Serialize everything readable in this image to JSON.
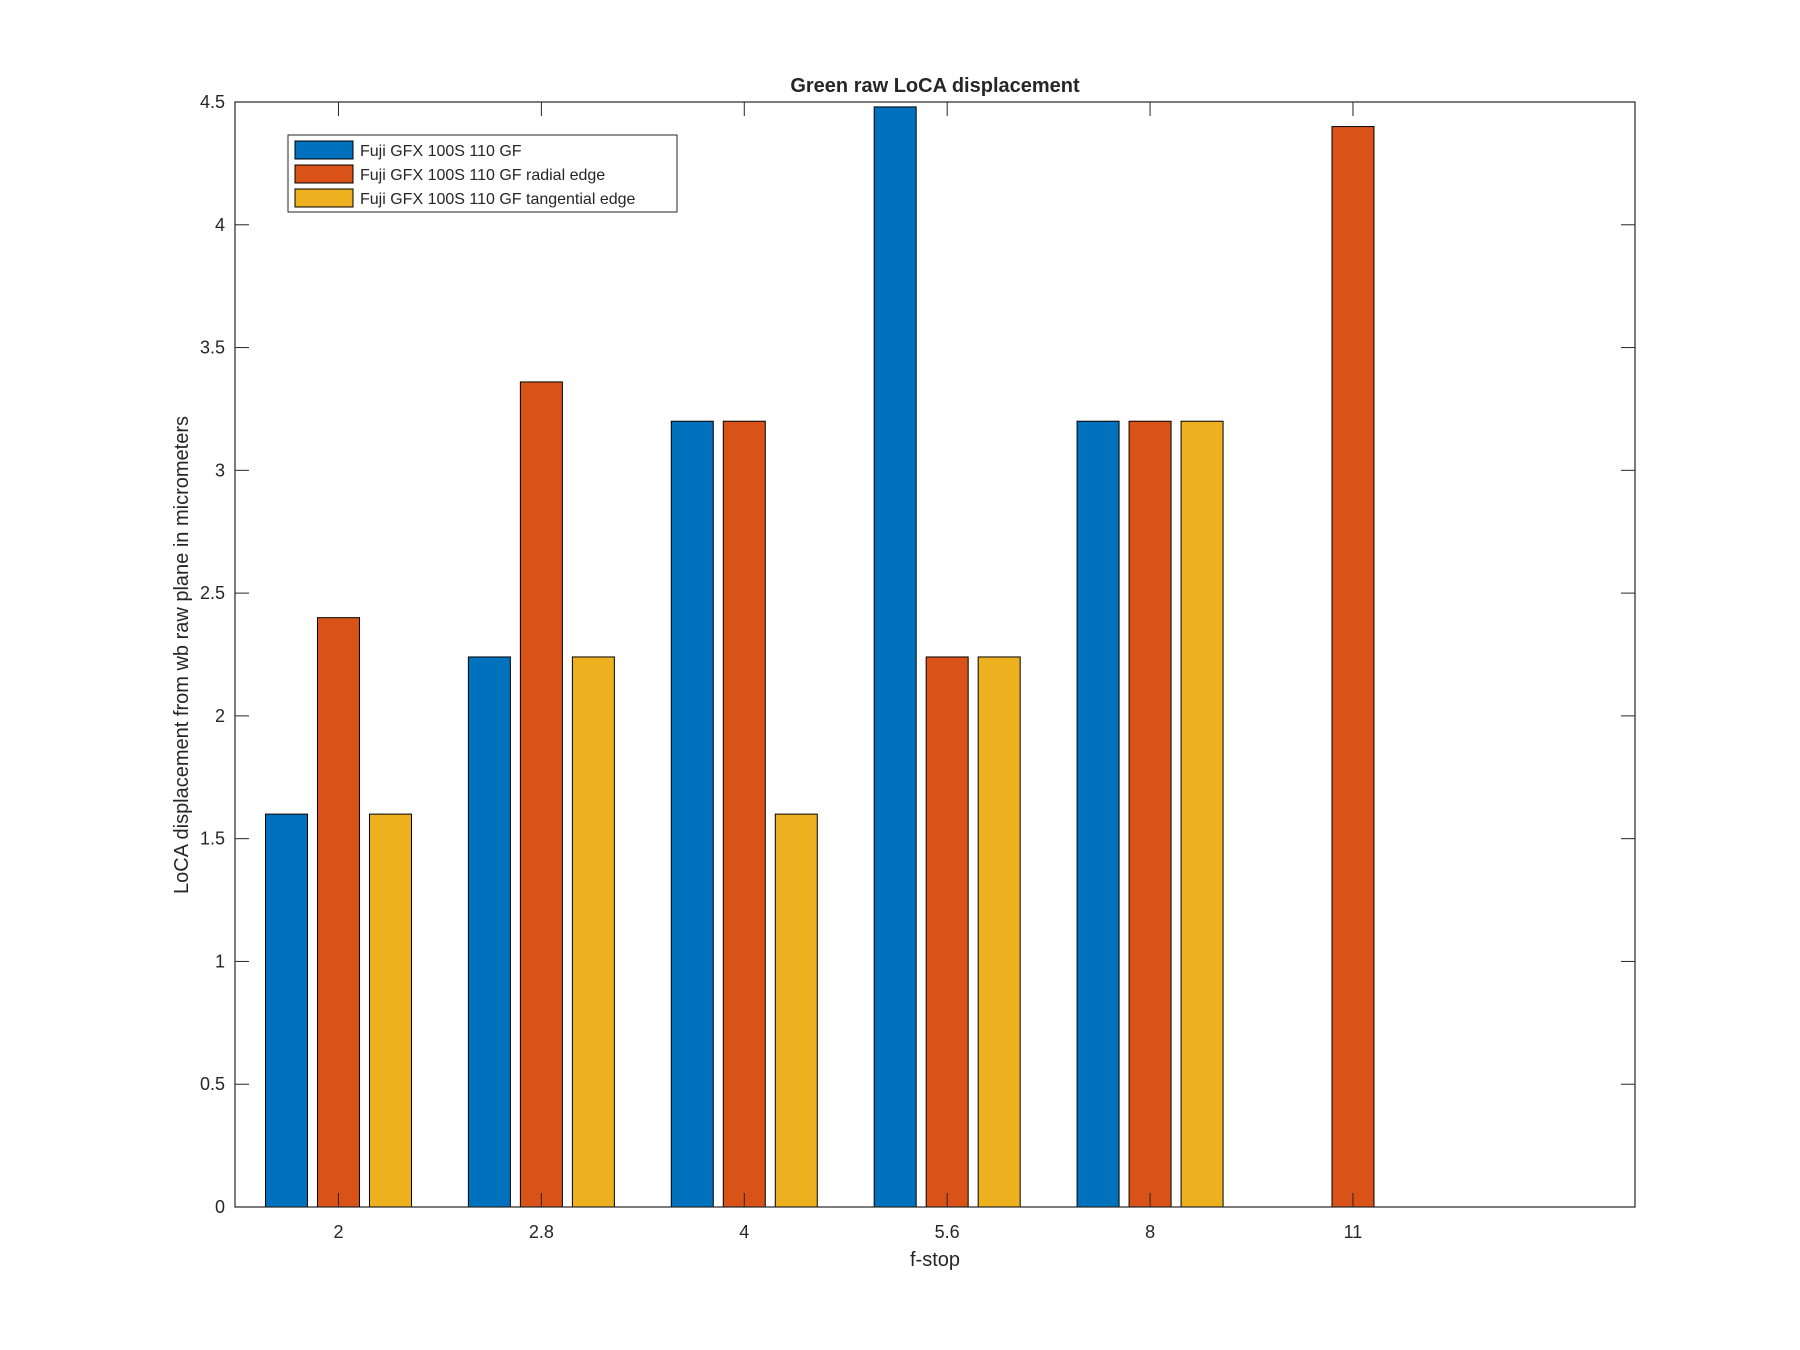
{
  "chart_data": {
    "type": "bar",
    "title": "Green raw  LoCA displacement",
    "xlabel": "f-stop",
    "ylabel": "LoCA displacement from wb raw plane in micrometers",
    "categories": [
      "2",
      "2.8",
      "4",
      "5.6",
      "8",
      "11"
    ],
    "series": [
      {
        "name": "Fuji GFX 100S 110 GF",
        "color": "#0072BD",
        "values": [
          1.6,
          2.24,
          3.2,
          4.48,
          3.2,
          0
        ]
      },
      {
        "name": "Fuji GFX 100S 110 GF radial edge",
        "color": "#D95319",
        "values": [
          2.4,
          3.36,
          3.2,
          2.24,
          3.2,
          4.4
        ]
      },
      {
        "name": "Fuji GFX 100S 110 GF tangential edge",
        "color": "#EDB120",
        "values": [
          1.6,
          2.24,
          1.6,
          2.24,
          3.2,
          0
        ]
      }
    ],
    "ylim": [
      0,
      4.5
    ],
    "yticks": [
      "0",
      "0.5",
      "1",
      "1.5",
      "2",
      "2.5",
      "3",
      "3.5",
      "4",
      "4.5"
    ],
    "grid": false,
    "legend_position": "top-left"
  }
}
